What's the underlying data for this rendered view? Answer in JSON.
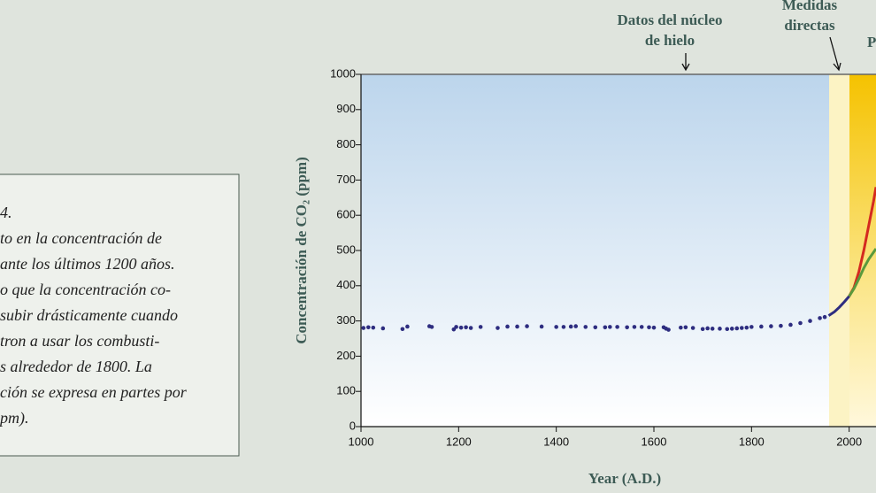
{
  "chart_data": {
    "type": "scatter",
    "xlabel": "Year (A.D.)",
    "ylabel": "Concentración de CO₂ (ppm)",
    "annotations": [
      "Datos del núcleo",
      "de hielo",
      "Medidas",
      "directas",
      "P"
    ],
    "xlim": [
      1000,
      2055
    ],
    "xticks": [
      1000,
      1200,
      1400,
      1600,
      1800,
      2000
    ],
    "ylim": [
      0,
      1000
    ],
    "yticks": [
      0,
      100,
      200,
      300,
      400,
      500,
      600,
      700,
      800,
      900,
      1000
    ],
    "series": [
      {
        "color": "#2e2d80",
        "mode": "points",
        "x": [
          1005,
          1015,
          1025,
          1045,
          1085,
          1095,
          1140,
          1145,
          1190,
          1195,
          1205,
          1215,
          1225,
          1245,
          1280,
          1300,
          1320,
          1340,
          1370,
          1400,
          1415,
          1430,
          1440,
          1460,
          1480,
          1500,
          1510,
          1525,
          1545,
          1560,
          1575,
          1590,
          1600,
          1620,
          1625,
          1630,
          1655,
          1665,
          1680,
          1700,
          1710,
          1720,
          1735,
          1750,
          1760,
          1770,
          1780,
          1790,
          1800,
          1820,
          1840,
          1860,
          1880,
          1900,
          1920,
          1940,
          1950
        ],
        "values": [
          280,
          282,
          281,
          279,
          277,
          284,
          285,
          283,
          276,
          283,
          281,
          282,
          280,
          283,
          280,
          284,
          284,
          285,
          284,
          283,
          283,
          284,
          285,
          283,
          282,
          282,
          283,
          283,
          282,
          283,
          283,
          282,
          281,
          282,
          278,
          275,
          281,
          282,
          280,
          277,
          279,
          278,
          278,
          277,
          278,
          279,
          280,
          281,
          283,
          284,
          285,
          286,
          289,
          294,
          300,
          308,
          311
        ]
      },
      {
        "color": "#2e2d80",
        "mode": "line",
        "x": [
          1958,
          1970,
          1980,
          1990,
          2000
        ],
        "values": [
          315,
          326,
          339,
          354,
          370
        ]
      },
      {
        "color": "#d42a1f",
        "mode": "line",
        "x": [
          2000,
          2010,
          2020,
          2030,
          2040,
          2050,
          2055
        ],
        "values": [
          370,
          395,
          440,
          500,
          570,
          640,
          680
        ]
      },
      {
        "color": "#5a9a3c",
        "mode": "line",
        "x": [
          2000,
          2010,
          2020,
          2030,
          2040,
          2050,
          2055
        ],
        "values": [
          370,
          392,
          420,
          450,
          475,
          495,
          505
        ]
      }
    ]
  },
  "caption": {
    "lines": [
      "4.",
      "to en la concentración de",
      "ante los últimos 1200 años.",
      "o que la concentración co-",
      "subir drásticamente cuando",
      "tron a usar los combusti-",
      "s alrededor de 1800. La",
      "ción se expresa en partes por",
      "pm)."
    ]
  }
}
